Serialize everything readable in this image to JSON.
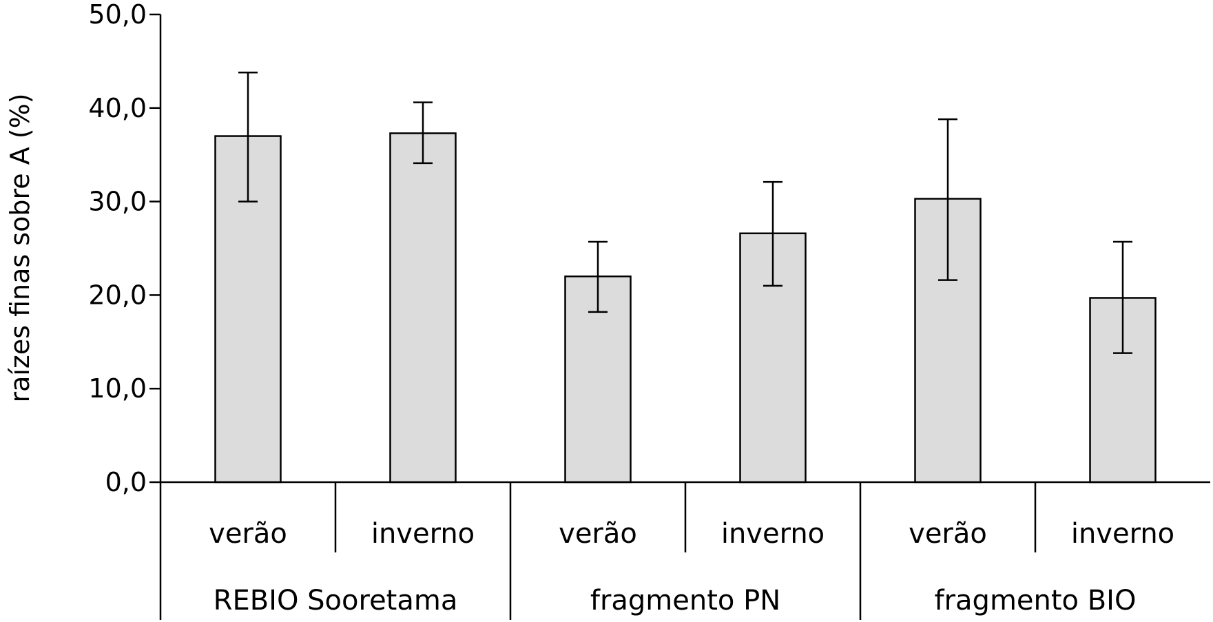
{
  "chart_data": {
    "type": "bar",
    "ylabel": "raízes finas sobre A (%)",
    "xlabel": "",
    "ylim": [
      0,
      50
    ],
    "yticks": [
      0,
      10,
      20,
      30,
      40,
      50
    ],
    "ytick_labels": [
      "0,0",
      "10,0",
      "20,0",
      "30,0",
      "40,0",
      "50,0"
    ],
    "grid": false,
    "groups": [
      "REBIO Sooretama",
      "fragmento PN",
      "fragmento BIO"
    ],
    "categories": [
      "verão",
      "inverno",
      "verão",
      "inverno",
      "verão",
      "inverno"
    ],
    "values": [
      37.0,
      37.3,
      22.0,
      26.6,
      30.3,
      19.7
    ],
    "error_low": [
      30.0,
      34.1,
      18.2,
      21.0,
      21.6,
      13.8
    ],
    "error_high": [
      43.8,
      40.6,
      25.7,
      32.1,
      38.8,
      25.7
    ],
    "colors": {
      "bar_fill": "#dcdcdc",
      "bar_stroke": "#000000",
      "axis": "#000000"
    }
  }
}
